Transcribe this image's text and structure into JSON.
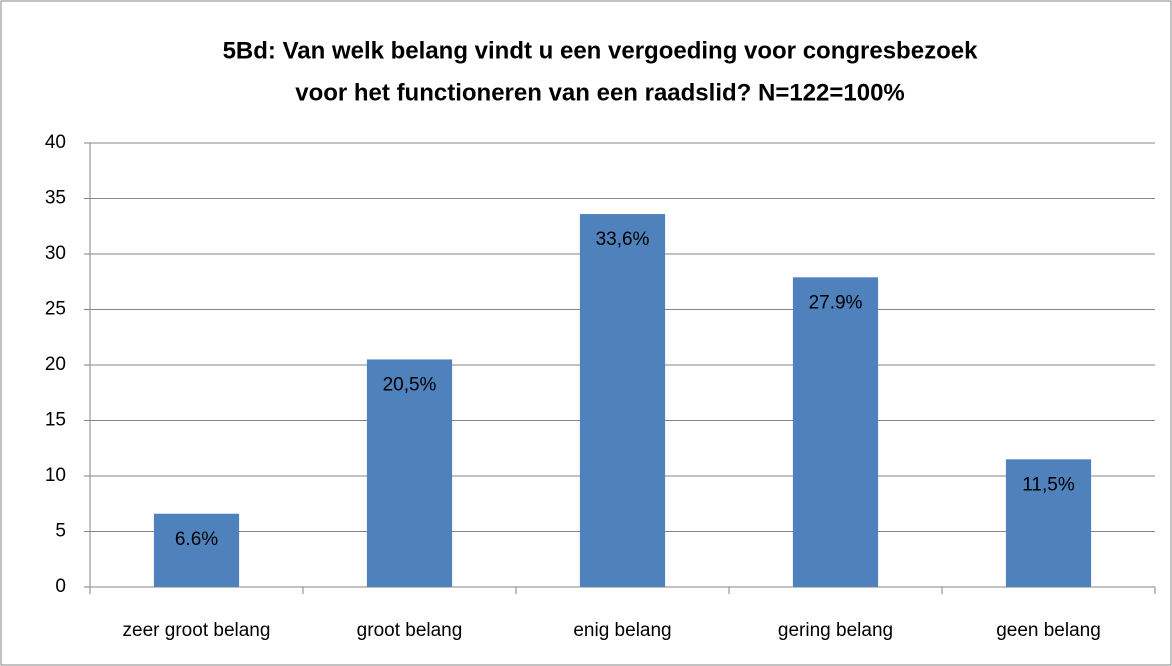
{
  "chart_data": {
    "type": "bar",
    "title": [
      "5Bd: Van welk belang vindt u een vergoeding voor congresbezoek",
      "voor het functioneren van een raadslid? N=122=100%"
    ],
    "categories": [
      "zeer groot belang",
      "groot belang",
      "enig belang",
      "gering belang",
      "geen belang"
    ],
    "values": [
      6.6,
      20.5,
      33.6,
      27.9,
      11.5
    ],
    "value_labels": [
      "6.6%",
      "20,5%",
      "33,6%",
      "27.9%",
      "11,5%"
    ],
    "color": "#4f81bd",
    "ylim": [
      0,
      40
    ],
    "yticks": [
      0,
      5,
      10,
      15,
      20,
      25,
      30,
      35,
      40
    ],
    "grid": true
  }
}
